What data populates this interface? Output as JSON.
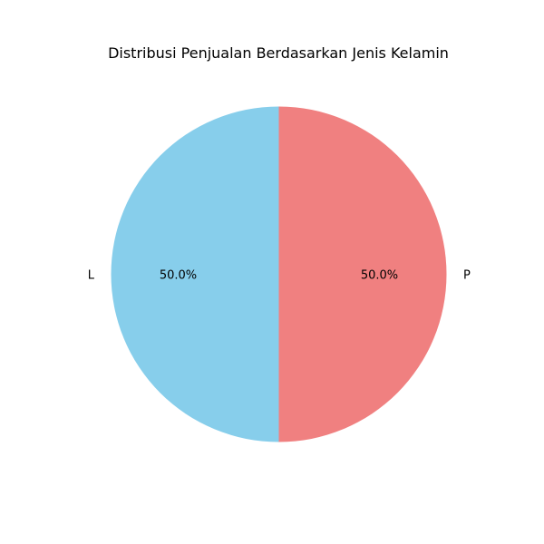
{
  "chart_data": {
    "type": "pie",
    "title": "Distribusi Penjualan Berdasarkan Jenis Kelamin",
    "categories": [
      "L",
      "P"
    ],
    "values": [
      50.0,
      50.0
    ],
    "percent_labels": [
      "50.0%",
      "50.0%"
    ],
    "colors": [
      "#87ceeb",
      "#f08080"
    ],
    "start_angle_deg": 90,
    "direction": "counterclockwise",
    "legend": "none"
  }
}
